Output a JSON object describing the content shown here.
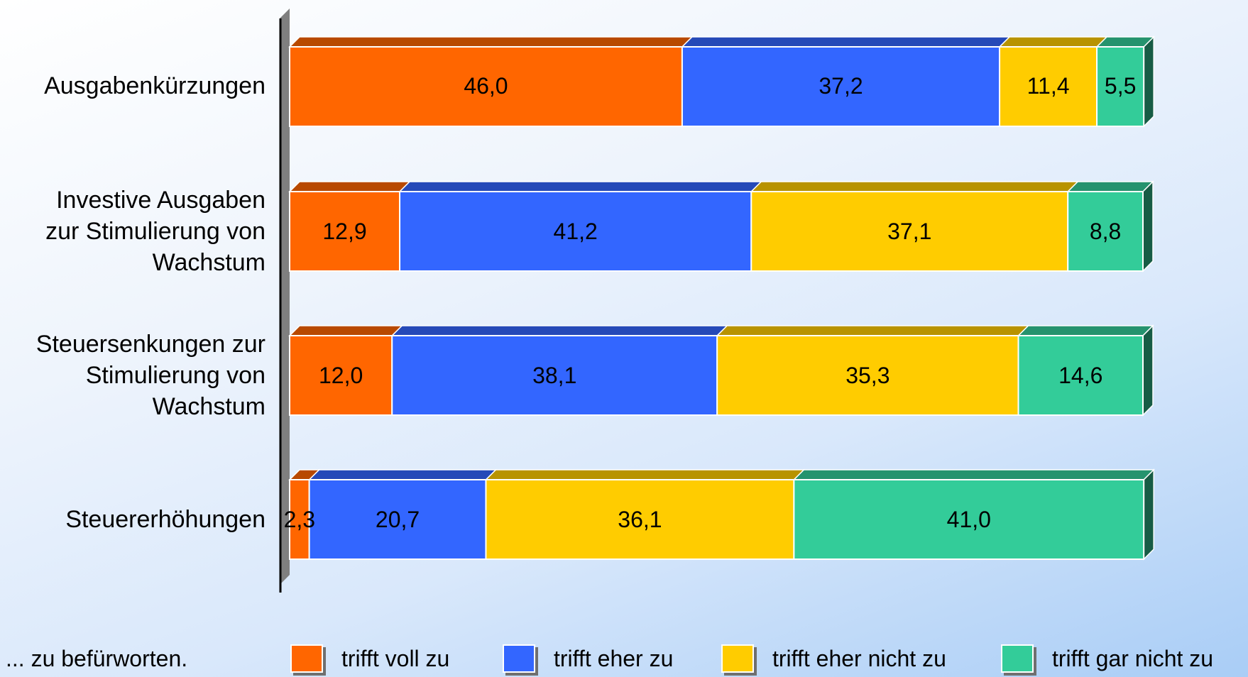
{
  "chart_data": {
    "type": "bar",
    "orientation": "horizontal",
    "stacked": true,
    "categories": [
      "Ausgabenkürzungen",
      "Investive Ausgaben\nzur Stimulierung von\nWachstum",
      "Steuersenkungen zur\nStimulierung von\nWachstum",
      "Steuererhöhungen"
    ],
    "series": [
      {
        "name": "trifft voll zu",
        "color": "#ff6600",
        "values": [
          46.0,
          12.9,
          12.0,
          2.3
        ],
        "labels": [
          "46,0",
          "12,9",
          "12,0",
          "2,3"
        ]
      },
      {
        "name": "trifft eher zu",
        "color": "#3366ff",
        "values": [
          37.2,
          41.2,
          38.1,
          20.7
        ],
        "labels": [
          "37,2",
          "41,2",
          "38,1",
          "20,7"
        ]
      },
      {
        "name": "trifft eher nicht zu",
        "color": "#ffcc00",
        "values": [
          11.4,
          37.1,
          35.3,
          36.1
        ],
        "labels": [
          "11,4",
          "37,1",
          "35,3",
          "36,1"
        ]
      },
      {
        "name": "trifft gar nicht zu",
        "color": "#33cc99",
        "values": [
          5.5,
          8.8,
          14.6,
          41.0
        ],
        "labels": [
          "5,5",
          "8,8",
          "14,6",
          "41,0"
        ]
      }
    ],
    "xlim": [
      0,
      100
    ],
    "legend_position": "bottom",
    "grid": false,
    "style": "3d-stacked-bar"
  },
  "footnote": "... zu befürworten."
}
